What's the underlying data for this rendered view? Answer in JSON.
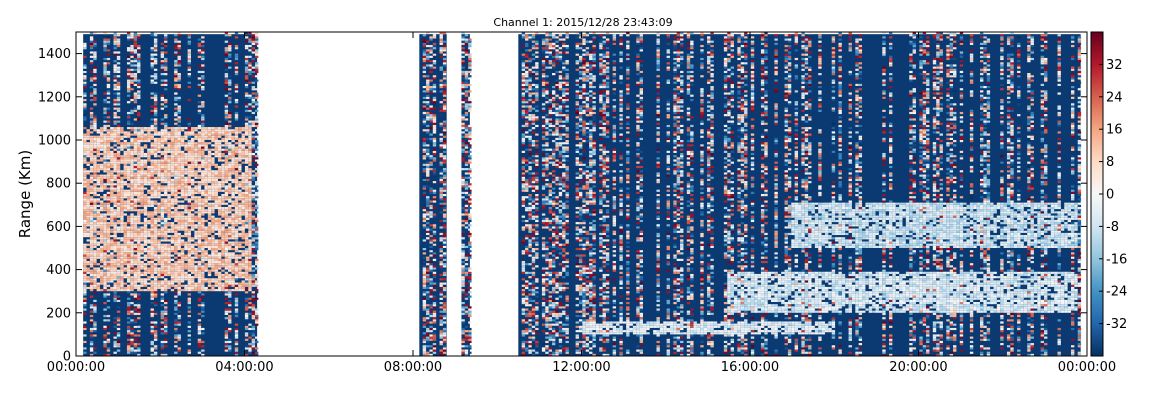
{
  "chart_data": {
    "type": "heatmap",
    "title": "Channel 1: 2015/12/28 23:43:09",
    "xlabel": "",
    "ylabel": "Range (Km)",
    "x_ticks": [
      "00:00:00",
      "04:00:00",
      "08:00:00",
      "12:00:00",
      "16:00:00",
      "20:00:00",
      "00:00:00"
    ],
    "x_range_hours": [
      0,
      24
    ],
    "y_ticks": [
      "0",
      "200",
      "400",
      "600",
      "800",
      "1000",
      "1200",
      "1400"
    ],
    "ylim": [
      0,
      1500
    ],
    "colorbar": {
      "colormap": "RdBu_r",
      "ticks": [
        "32",
        "24",
        "16",
        "8",
        "0",
        "-8",
        "-16",
        "-24",
        "-32"
      ],
      "range": [
        -40,
        40
      ]
    },
    "data_windows_hours": [
      [
        0.17,
        4.3
      ],
      [
        8.15,
        8.8
      ],
      [
        9.15,
        9.35
      ],
      [
        10.5,
        23.85
      ]
    ],
    "features": [
      {
        "name": "positive echoes",
        "hours": [
          0.2,
          4.2
        ],
        "range_km": [
          300,
          1050
        ],
        "value_db": 10
      },
      {
        "name": "echo trace",
        "hours": [
          12.0,
          18.0
        ],
        "range_km": [
          100,
          150
        ],
        "value_db": -4
      },
      {
        "name": "echo trace",
        "hours": [
          15.5,
          23.8
        ],
        "range_km": [
          200,
          380
        ],
        "value_db": -6
      },
      {
        "name": "echo trace",
        "hours": [
          17.0,
          23.8
        ],
        "range_km": [
          500,
          700
        ],
        "value_db": -8
      }
    ],
    "grid": false,
    "legend": "colorbar-right"
  },
  "colors": {
    "background_fill": "#0b3a72",
    "frame": "#000000",
    "cmap_stops": [
      "#053061",
      "#2166ac",
      "#4393c3",
      "#92c5de",
      "#d1e5f0",
      "#f7f7f7",
      "#fddbc7",
      "#f4a582",
      "#d6604d",
      "#b2182b",
      "#67001f"
    ]
  }
}
